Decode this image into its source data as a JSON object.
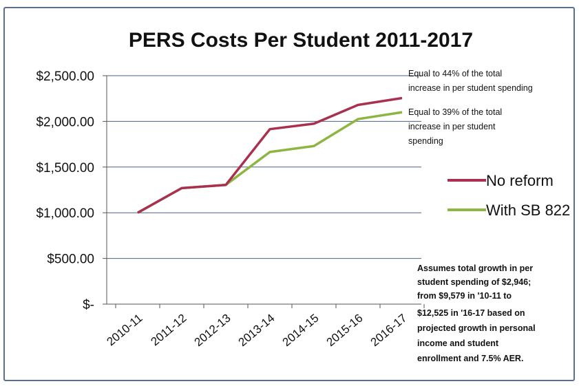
{
  "chart_data": {
    "type": "line",
    "title": "PERS Costs Per Student 2011-2017",
    "categories": [
      "2010-11",
      "2011-12",
      "2012-13",
      "2013-14",
      "2014-15",
      "2015-16",
      "2016-17"
    ],
    "series": [
      {
        "name": "No reform",
        "color": "#a8314f",
        "values": [
          1000,
          1270,
          1305,
          1915,
          1975,
          2180,
          2255
        ]
      },
      {
        "name": "With SB 822",
        "color": "#8db542",
        "values": [
          1000,
          1270,
          1305,
          1665,
          1730,
          2025,
          2100
        ]
      }
    ],
    "yticks": [
      "$2,500.00",
      "$2,000.00",
      "$1,500.00",
      "$1,000.00",
      "$500.00",
      "$-"
    ],
    "ylim": [
      0,
      2500
    ],
    "grid": true,
    "legend_position": "right",
    "annotations": [
      {
        "id": "note-no-reform",
        "lines": [
          "Equal to 44% of the total",
          "increase in per student spending"
        ]
      },
      {
        "id": "note-sb822",
        "lines": [
          "Equal to 39% of the total",
          "increase in per student",
          "spending"
        ]
      },
      {
        "id": "note-assumptions",
        "lines": [
          "Assumes total growth in per",
          "student spending of $2,946;",
          "from $9,579 in '10-11 to",
          "$12,525 in '16-17 based on",
          "projected growth in personal",
          "income and student",
          "enrollment and 7.5% AER."
        ]
      }
    ]
  }
}
